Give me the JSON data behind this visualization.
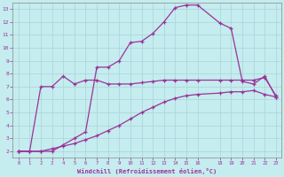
{
  "xlabel": "Windchill (Refroidissement éolien,°C)",
  "bg_color": "#c5ecee",
  "grid_color": "#a8d5da",
  "line_color": "#993399",
  "border_color": "#888888",
  "xmin": -0.5,
  "xmax": 23.5,
  "ymin": 1.5,
  "ymax": 13.5,
  "xticks": [
    0,
    1,
    2,
    3,
    4,
    5,
    6,
    7,
    8,
    9,
    10,
    11,
    12,
    13,
    14,
    15,
    16,
    18,
    19,
    20,
    21,
    22,
    23
  ],
  "yticks": [
    2,
    3,
    4,
    5,
    6,
    7,
    8,
    9,
    10,
    11,
    12,
    13
  ],
  "line1_x": [
    0,
    1,
    2,
    3,
    4,
    5,
    6,
    7,
    8,
    9,
    10,
    11,
    12,
    13,
    14,
    15,
    16,
    18,
    19,
    20,
    21,
    22,
    23
  ],
  "line1_y": [
    2.0,
    2.0,
    2.0,
    2.2,
    2.4,
    2.6,
    2.9,
    3.2,
    3.6,
    4.0,
    4.5,
    5.0,
    5.4,
    5.8,
    6.1,
    6.3,
    6.4,
    6.5,
    6.6,
    6.6,
    6.7,
    6.4,
    6.2
  ],
  "line2_x": [
    0,
    1,
    2,
    3,
    4,
    5,
    6,
    7,
    8,
    9,
    10,
    11,
    12,
    13,
    14,
    15,
    16,
    18,
    19,
    20,
    21,
    22,
    23
  ],
  "line2_y": [
    2.0,
    2.0,
    7.0,
    7.0,
    7.8,
    7.2,
    7.5,
    7.5,
    7.2,
    7.2,
    7.2,
    7.3,
    7.4,
    7.5,
    7.5,
    7.5,
    7.5,
    7.5,
    7.5,
    7.5,
    7.5,
    7.7,
    6.3
  ],
  "line3_x": [
    0,
    1,
    2,
    3,
    4,
    5,
    6,
    7,
    8,
    9,
    10,
    11,
    12,
    13,
    14,
    15,
    16,
    18,
    19,
    20,
    21,
    22,
    23
  ],
  "line3_y": [
    2.0,
    2.0,
    2.0,
    2.0,
    2.5,
    3.0,
    3.5,
    8.5,
    8.5,
    9.0,
    10.4,
    10.5,
    11.1,
    12.0,
    13.1,
    13.3,
    13.3,
    11.9,
    11.5,
    7.4,
    7.2,
    7.8,
    6.2
  ]
}
